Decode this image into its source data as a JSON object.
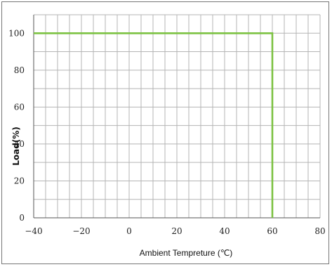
{
  "chart_data": {
    "type": "line",
    "xlabel": "Ambient Tempreture (℃)",
    "ylabel": "Load(%)",
    "xlim": [
      -40,
      80
    ],
    "ylim": [
      0,
      110
    ],
    "x_ticks": [
      -40,
      -20,
      0,
      20,
      40,
      60,
      80
    ],
    "y_ticks": [
      0,
      20,
      40,
      60,
      80,
      100
    ],
    "grid": true,
    "x_minor_step": 5,
    "y_minor_step": 10,
    "series": [
      {
        "color": "#7cc242",
        "points": [
          [
            -40,
            100
          ],
          [
            60,
            100
          ],
          [
            60,
            0
          ]
        ]
      }
    ]
  }
}
